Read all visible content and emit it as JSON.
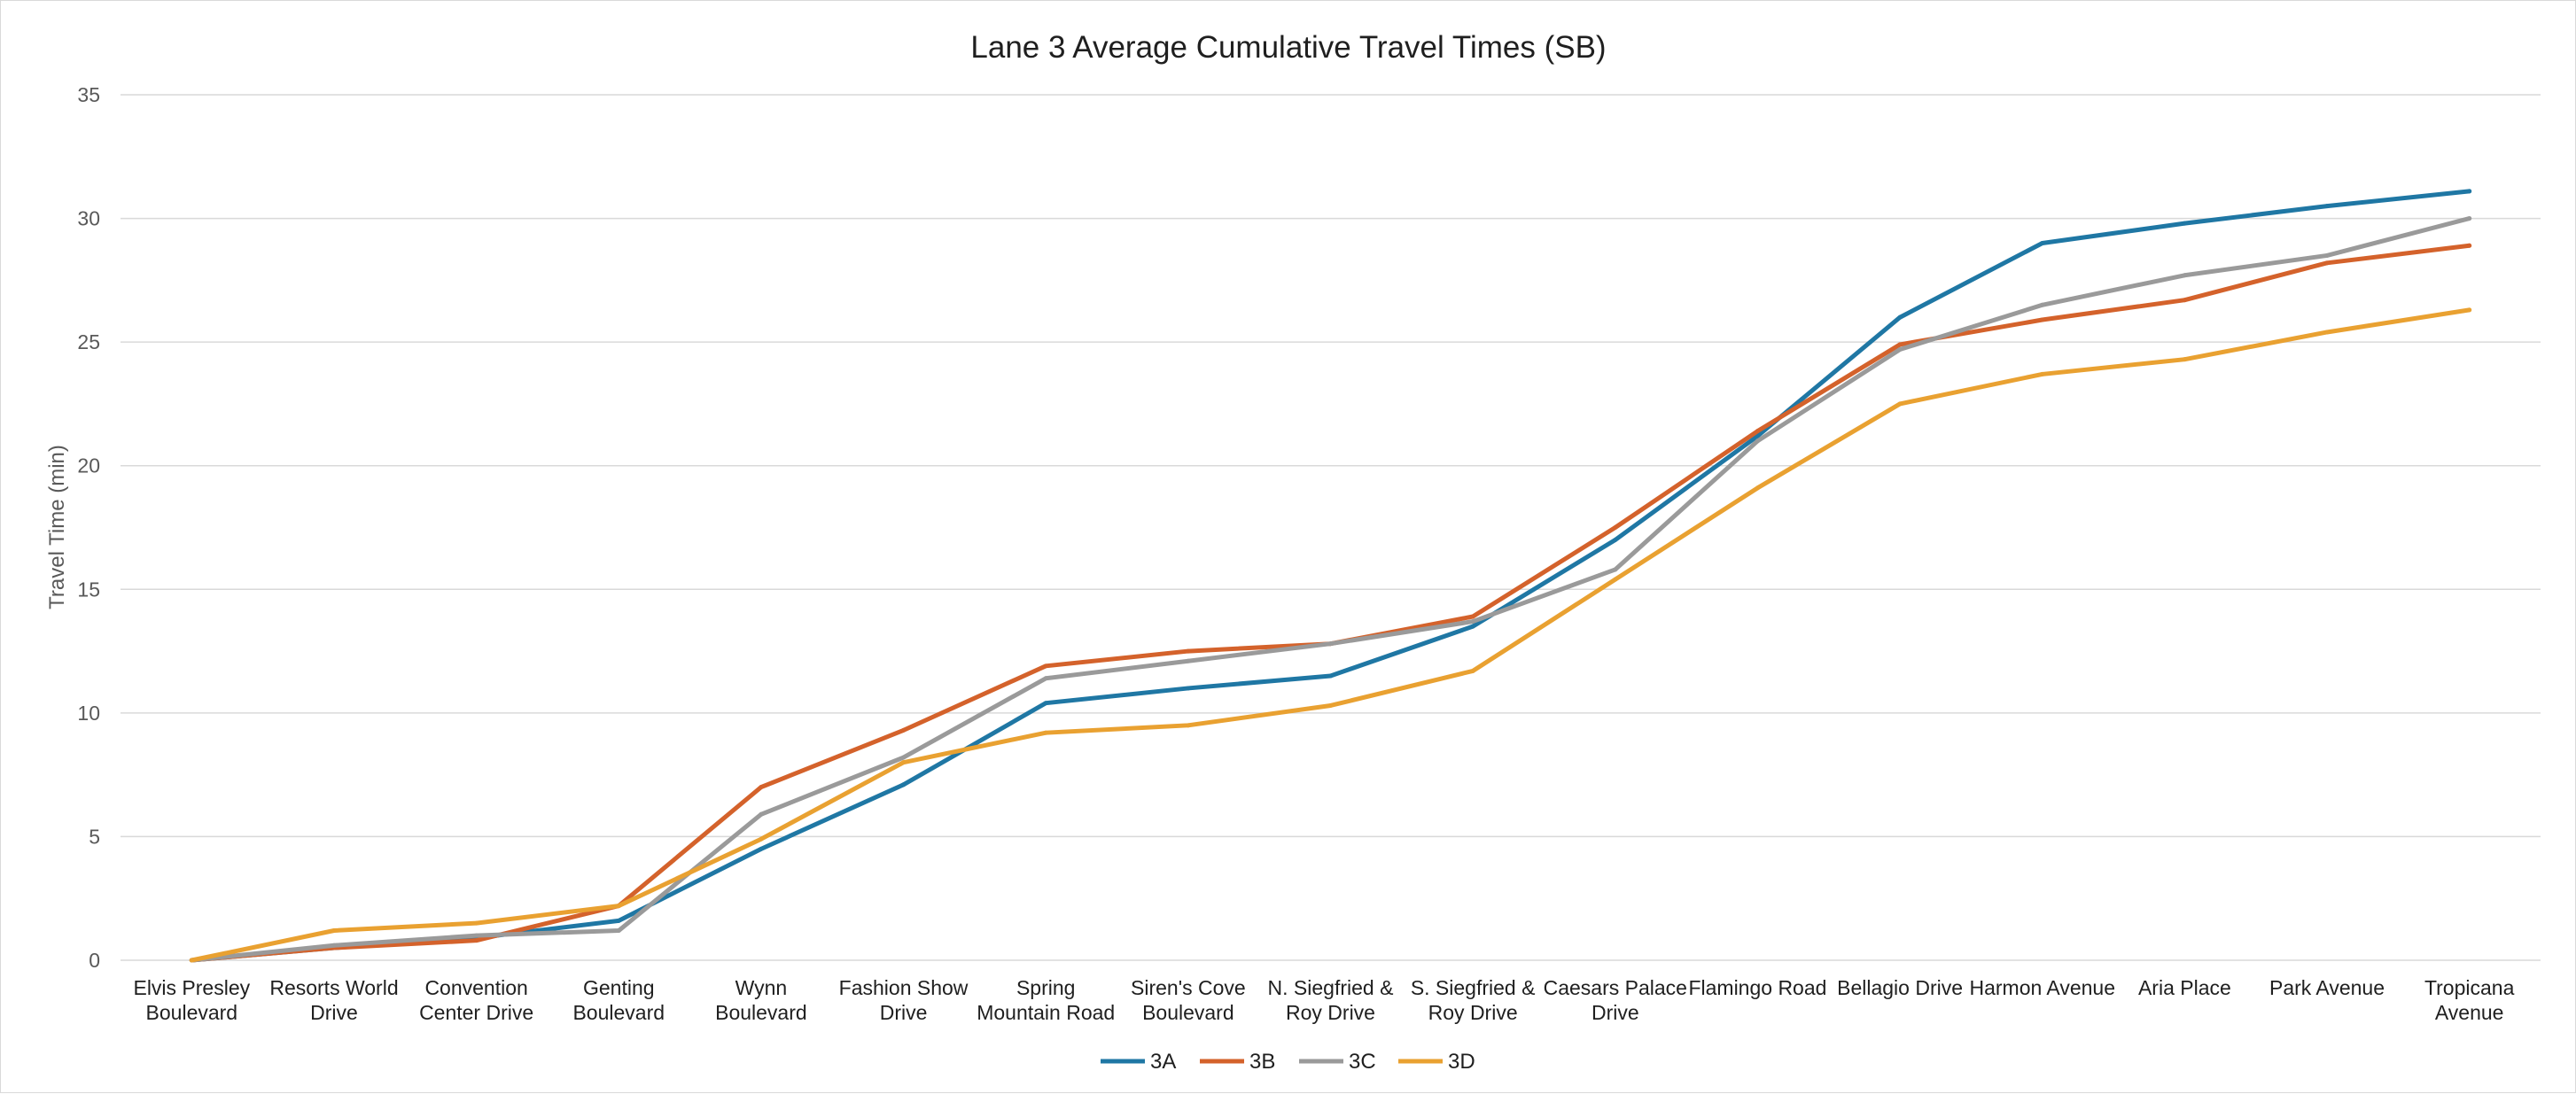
{
  "chart_data": {
    "type": "line",
    "title": "Lane 3 Average Cumulative Travel Times (SB)",
    "xlabel": "",
    "ylabel": "Travel Time (min)",
    "ylim": [
      0,
      35
    ],
    "yticks": [
      0,
      5,
      10,
      15,
      20,
      25,
      30,
      35
    ],
    "grid": true,
    "legend_position": "bottom",
    "categories": [
      [
        "Elvis Presley",
        "Boulevard"
      ],
      [
        "Resorts World",
        "Drive"
      ],
      [
        "Convention",
        "Center Drive"
      ],
      [
        "Genting",
        "Boulevard"
      ],
      [
        "Wynn",
        "Boulevard"
      ],
      [
        "Fashion Show",
        "Drive"
      ],
      [
        "Spring",
        "Mountain Road"
      ],
      [
        "Siren's Cove",
        "Boulevard"
      ],
      [
        "N. Siegfried &",
        "Roy Drive"
      ],
      [
        "S. Siegfried &",
        "Roy Drive"
      ],
      [
        "Caesars Palace",
        "Drive"
      ],
      [
        "Flamingo Road"
      ],
      [
        "Bellagio Drive"
      ],
      [
        "Harmon Avenue"
      ],
      [
        "Aria Place"
      ],
      [
        "Park Avenue"
      ],
      [
        "Tropicana",
        "Avenue"
      ]
    ],
    "series": [
      {
        "name": "3A",
        "color": "#1f77a4",
        "values": [
          0,
          0.5,
          0.9,
          1.6,
          4.5,
          7.1,
          10.4,
          11.0,
          11.5,
          13.5,
          17.0,
          21.2,
          26.0,
          29.0,
          29.8,
          30.5,
          31.1
        ]
      },
      {
        "name": "3B",
        "color": "#d4622b",
        "values": [
          0,
          0.5,
          0.8,
          2.2,
          7.0,
          9.3,
          11.9,
          12.5,
          12.8,
          13.9,
          17.5,
          21.4,
          24.9,
          25.9,
          26.7,
          28.2,
          28.9
        ]
      },
      {
        "name": "3C",
        "color": "#9a9a9a",
        "values": [
          0,
          0.6,
          1.0,
          1.2,
          5.9,
          8.2,
          11.4,
          12.1,
          12.8,
          13.7,
          15.8,
          21.0,
          24.7,
          26.5,
          27.7,
          28.5,
          30.0
        ]
      },
      {
        "name": "3D",
        "color": "#e9a131",
        "values": [
          0,
          1.2,
          1.5,
          2.2,
          4.9,
          8.0,
          9.2,
          9.5,
          10.3,
          11.7,
          15.4,
          19.1,
          22.5,
          23.7,
          24.3,
          25.4,
          26.3
        ]
      }
    ]
  }
}
